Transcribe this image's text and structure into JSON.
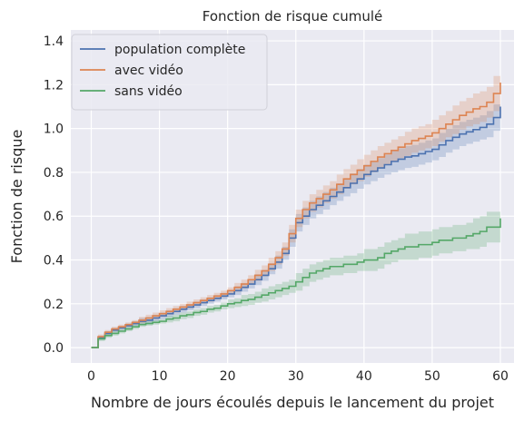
{
  "chart_data": {
    "type": "line",
    "title": "Fonction de risque cumulé",
    "xlabel": "Nombre de jours écoulés depuis le lancement du projet",
    "ylabel": "Fonction de risque",
    "xlim": [
      -3,
      62
    ],
    "ylim": [
      -0.07,
      1.45
    ],
    "x_ticks": [
      0,
      10,
      20,
      30,
      40,
      50,
      60
    ],
    "y_ticks": [
      0.0,
      0.2,
      0.4,
      0.6,
      0.8,
      1.0,
      1.2,
      1.4
    ],
    "x_tick_labels": [
      "0",
      "10",
      "20",
      "30",
      "40",
      "50",
      "60"
    ],
    "y_tick_labels": [
      "0.0",
      "0.2",
      "0.4",
      "0.6",
      "0.8",
      "1.0",
      "1.2",
      "1.4"
    ],
    "grid": true,
    "background": "#eaeaf2",
    "legend_position": "top-left",
    "step": true,
    "confidence_bands": true,
    "series": [
      {
        "name": "population complète",
        "color": "#4c72b0",
        "x": [
          0,
          1,
          2,
          3,
          4,
          5,
          6,
          7,
          8,
          9,
          10,
          11,
          12,
          13,
          14,
          15,
          16,
          17,
          18,
          19,
          20,
          21,
          22,
          23,
          24,
          25,
          26,
          27,
          28,
          29,
          30,
          31,
          32,
          33,
          34,
          35,
          36,
          37,
          38,
          39,
          40,
          41,
          42,
          43,
          44,
          45,
          46,
          47,
          48,
          49,
          50,
          51,
          52,
          53,
          54,
          55,
          56,
          57,
          58,
          59,
          60
        ],
        "values": [
          0.0,
          0.045,
          0.065,
          0.08,
          0.09,
          0.1,
          0.11,
          0.12,
          0.125,
          0.135,
          0.145,
          0.155,
          0.165,
          0.175,
          0.185,
          0.195,
          0.205,
          0.215,
          0.225,
          0.235,
          0.245,
          0.26,
          0.275,
          0.29,
          0.31,
          0.33,
          0.36,
          0.39,
          0.43,
          0.5,
          0.57,
          0.6,
          0.63,
          0.65,
          0.67,
          0.69,
          0.71,
          0.73,
          0.75,
          0.77,
          0.79,
          0.805,
          0.82,
          0.835,
          0.85,
          0.86,
          0.87,
          0.875,
          0.885,
          0.895,
          0.905,
          0.925,
          0.945,
          0.96,
          0.975,
          0.985,
          0.995,
          1.005,
          1.02,
          1.05,
          1.1
        ],
        "lower": [
          0.0,
          0.035,
          0.055,
          0.07,
          0.08,
          0.09,
          0.1,
          0.105,
          0.11,
          0.12,
          0.13,
          0.14,
          0.15,
          0.16,
          0.17,
          0.18,
          0.19,
          0.2,
          0.21,
          0.22,
          0.23,
          0.24,
          0.255,
          0.27,
          0.285,
          0.305,
          0.335,
          0.36,
          0.4,
          0.46,
          0.53,
          0.56,
          0.59,
          0.61,
          0.63,
          0.65,
          0.67,
          0.69,
          0.705,
          0.725,
          0.745,
          0.76,
          0.775,
          0.79,
          0.8,
          0.81,
          0.82,
          0.825,
          0.835,
          0.845,
          0.855,
          0.87,
          0.89,
          0.905,
          0.92,
          0.93,
          0.94,
          0.95,
          0.96,
          0.99,
          1.03
        ],
        "upper": [
          0.0,
          0.055,
          0.075,
          0.09,
          0.1,
          0.11,
          0.12,
          0.135,
          0.14,
          0.15,
          0.16,
          0.17,
          0.18,
          0.19,
          0.2,
          0.21,
          0.22,
          0.23,
          0.24,
          0.25,
          0.26,
          0.28,
          0.295,
          0.31,
          0.335,
          0.355,
          0.385,
          0.42,
          0.46,
          0.54,
          0.61,
          0.64,
          0.67,
          0.69,
          0.71,
          0.73,
          0.75,
          0.77,
          0.795,
          0.815,
          0.835,
          0.85,
          0.865,
          0.88,
          0.9,
          0.91,
          0.92,
          0.925,
          0.935,
          0.945,
          0.955,
          0.98,
          1.0,
          1.015,
          1.03,
          1.04,
          1.05,
          1.06,
          1.08,
          1.11,
          1.17
        ]
      },
      {
        "name": "avec vidéo",
        "color": "#dd8452",
        "x": [
          0,
          1,
          2,
          3,
          4,
          5,
          6,
          7,
          8,
          9,
          10,
          11,
          12,
          13,
          14,
          15,
          16,
          17,
          18,
          19,
          20,
          21,
          22,
          23,
          24,
          25,
          26,
          27,
          28,
          29,
          30,
          31,
          32,
          33,
          34,
          35,
          36,
          37,
          38,
          39,
          40,
          41,
          42,
          43,
          44,
          45,
          46,
          47,
          48,
          49,
          50,
          51,
          52,
          53,
          54,
          55,
          56,
          57,
          58,
          59,
          60
        ],
        "values": [
          0.0,
          0.05,
          0.07,
          0.085,
          0.095,
          0.105,
          0.115,
          0.125,
          0.135,
          0.145,
          0.155,
          0.165,
          0.175,
          0.185,
          0.195,
          0.205,
          0.215,
          0.225,
          0.235,
          0.245,
          0.26,
          0.275,
          0.29,
          0.31,
          0.33,
          0.35,
          0.38,
          0.41,
          0.45,
          0.52,
          0.59,
          0.63,
          0.66,
          0.68,
          0.7,
          0.72,
          0.745,
          0.77,
          0.79,
          0.81,
          0.83,
          0.85,
          0.87,
          0.885,
          0.9,
          0.915,
          0.93,
          0.945,
          0.955,
          0.965,
          0.98,
          1.0,
          1.02,
          1.04,
          1.06,
          1.075,
          1.09,
          1.1,
          1.12,
          1.16,
          1.21
        ],
        "lower": [
          0.0,
          0.04,
          0.06,
          0.075,
          0.085,
          0.095,
          0.105,
          0.11,
          0.12,
          0.13,
          0.14,
          0.15,
          0.16,
          0.17,
          0.18,
          0.19,
          0.2,
          0.21,
          0.22,
          0.23,
          0.245,
          0.255,
          0.27,
          0.29,
          0.305,
          0.325,
          0.35,
          0.38,
          0.42,
          0.48,
          0.55,
          0.59,
          0.62,
          0.64,
          0.66,
          0.68,
          0.7,
          0.725,
          0.745,
          0.76,
          0.78,
          0.8,
          0.82,
          0.835,
          0.85,
          0.865,
          0.875,
          0.89,
          0.9,
          0.91,
          0.92,
          0.94,
          0.96,
          0.975,
          0.995,
          1.01,
          1.02,
          1.03,
          1.05,
          1.08,
          1.12
        ],
        "upper": [
          0.0,
          0.06,
          0.08,
          0.095,
          0.105,
          0.115,
          0.125,
          0.14,
          0.15,
          0.16,
          0.17,
          0.18,
          0.19,
          0.2,
          0.21,
          0.22,
          0.23,
          0.24,
          0.25,
          0.26,
          0.275,
          0.295,
          0.31,
          0.33,
          0.355,
          0.375,
          0.41,
          0.44,
          0.48,
          0.56,
          0.63,
          0.67,
          0.7,
          0.72,
          0.74,
          0.76,
          0.79,
          0.815,
          0.835,
          0.86,
          0.88,
          0.9,
          0.92,
          0.935,
          0.95,
          0.965,
          0.985,
          1.0,
          1.01,
          1.02,
          1.04,
          1.06,
          1.08,
          1.105,
          1.125,
          1.14,
          1.16,
          1.17,
          1.19,
          1.24,
          1.3
        ]
      },
      {
        "name": "sans vidéo",
        "color": "#55a868",
        "x": [
          0,
          1,
          2,
          3,
          4,
          5,
          6,
          7,
          8,
          9,
          10,
          11,
          12,
          13,
          14,
          15,
          16,
          17,
          18,
          19,
          20,
          21,
          22,
          23,
          24,
          25,
          26,
          27,
          28,
          29,
          30,
          31,
          32,
          33,
          34,
          35,
          36,
          37,
          38,
          39,
          40,
          41,
          42,
          43,
          44,
          45,
          46,
          47,
          48,
          49,
          50,
          51,
          52,
          53,
          54,
          55,
          56,
          57,
          58,
          59,
          60
        ],
        "values": [
          0.0,
          0.04,
          0.055,
          0.065,
          0.075,
          0.085,
          0.095,
          0.105,
          0.11,
          0.115,
          0.12,
          0.13,
          0.135,
          0.145,
          0.15,
          0.16,
          0.165,
          0.175,
          0.18,
          0.19,
          0.2,
          0.205,
          0.215,
          0.22,
          0.23,
          0.24,
          0.25,
          0.26,
          0.27,
          0.28,
          0.3,
          0.32,
          0.34,
          0.35,
          0.36,
          0.37,
          0.37,
          0.38,
          0.38,
          0.39,
          0.4,
          0.4,
          0.41,
          0.43,
          0.44,
          0.45,
          0.46,
          0.46,
          0.47,
          0.47,
          0.48,
          0.49,
          0.49,
          0.5,
          0.5,
          0.51,
          0.52,
          0.53,
          0.55,
          0.55,
          0.59
        ],
        "lower": [
          0.0,
          0.03,
          0.045,
          0.055,
          0.065,
          0.075,
          0.085,
          0.095,
          0.1,
          0.105,
          0.11,
          0.115,
          0.12,
          0.13,
          0.135,
          0.145,
          0.15,
          0.16,
          0.165,
          0.175,
          0.18,
          0.185,
          0.19,
          0.195,
          0.205,
          0.21,
          0.22,
          0.23,
          0.24,
          0.25,
          0.26,
          0.28,
          0.3,
          0.31,
          0.32,
          0.33,
          0.33,
          0.34,
          0.34,
          0.35,
          0.35,
          0.35,
          0.36,
          0.38,
          0.39,
          0.4,
          0.4,
          0.4,
          0.41,
          0.41,
          0.42,
          0.43,
          0.43,
          0.44,
          0.44,
          0.45,
          0.45,
          0.46,
          0.48,
          0.48,
          0.5
        ],
        "upper": [
          0.0,
          0.05,
          0.065,
          0.075,
          0.085,
          0.095,
          0.105,
          0.115,
          0.12,
          0.125,
          0.13,
          0.145,
          0.15,
          0.16,
          0.165,
          0.175,
          0.18,
          0.19,
          0.195,
          0.205,
          0.22,
          0.225,
          0.24,
          0.245,
          0.255,
          0.27,
          0.28,
          0.29,
          0.3,
          0.31,
          0.34,
          0.36,
          0.38,
          0.39,
          0.4,
          0.41,
          0.41,
          0.42,
          0.42,
          0.43,
          0.45,
          0.45,
          0.46,
          0.48,
          0.49,
          0.5,
          0.52,
          0.52,
          0.53,
          0.53,
          0.54,
          0.55,
          0.55,
          0.56,
          0.56,
          0.57,
          0.59,
          0.6,
          0.62,
          0.62,
          0.7
        ]
      }
    ]
  }
}
